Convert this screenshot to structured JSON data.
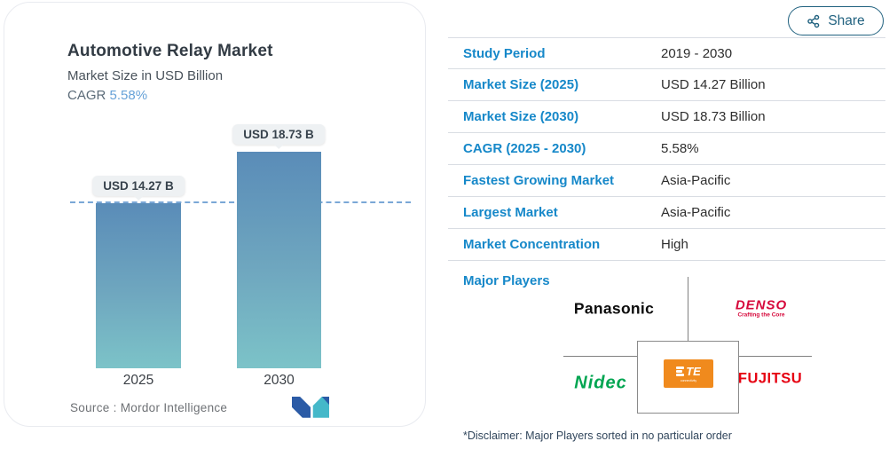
{
  "share": {
    "label": "Share"
  },
  "chart_card": {
    "title": "Automotive Relay Market",
    "subtitle": "Market Size in USD Billion",
    "cagr_label": "CAGR",
    "cagr_value": "5.58%",
    "source": "Source :  Mordor Intelligence",
    "logo": "mordor-intelligence-logo"
  },
  "chart_data": {
    "type": "bar",
    "title": "Automotive Relay Market",
    "ylabel": "Market Size in USD Billion",
    "categories": [
      "2025",
      "2030"
    ],
    "values": [
      14.27,
      18.73
    ],
    "bar_labels": [
      "USD 14.27 B",
      "USD 18.73 B"
    ],
    "cagr": "5.58%",
    "reference_line": 14.27,
    "ylim": [
      0,
      20
    ],
    "bar_gradient": [
      "#5a8cb8",
      "#7cc3c8"
    ],
    "grid": false,
    "legend": false
  },
  "table": {
    "rows": [
      {
        "label": "Study Period",
        "value": "2019 - 2030"
      },
      {
        "label": "Market Size (2025)",
        "value": "USD 14.27 Billion"
      },
      {
        "label": "Market Size (2030)",
        "value": "USD 18.73 Billion"
      },
      {
        "label": "CAGR (2025 - 2030)",
        "value": "5.58%"
      },
      {
        "label": "Fastest Growing Market",
        "value": "Asia-Pacific"
      },
      {
        "label": "Largest Market",
        "value": "Asia-Pacific"
      },
      {
        "label": "Market Concentration",
        "value": "High"
      }
    ]
  },
  "major_players": {
    "label": "Major Players",
    "panasonic": "Panasonic",
    "denso": "DENSO",
    "denso_tagline": "Crafting the Core",
    "nidec": "Nidec",
    "te": "TE",
    "te_sub": "connectivity",
    "fujitsu": "FUJITSU"
  },
  "disclaimer": "*Disclaimer: Major Players sorted in no particular order",
  "colors": {
    "accent_blue": "#1688c9",
    "cagr_blue": "#67a2d8",
    "share_teal": "#20617f",
    "te_orange": "#f08a1d",
    "denso_red": "#d6083b",
    "nidec_green": "#00a551",
    "fujitsu_red": "#e60012"
  }
}
